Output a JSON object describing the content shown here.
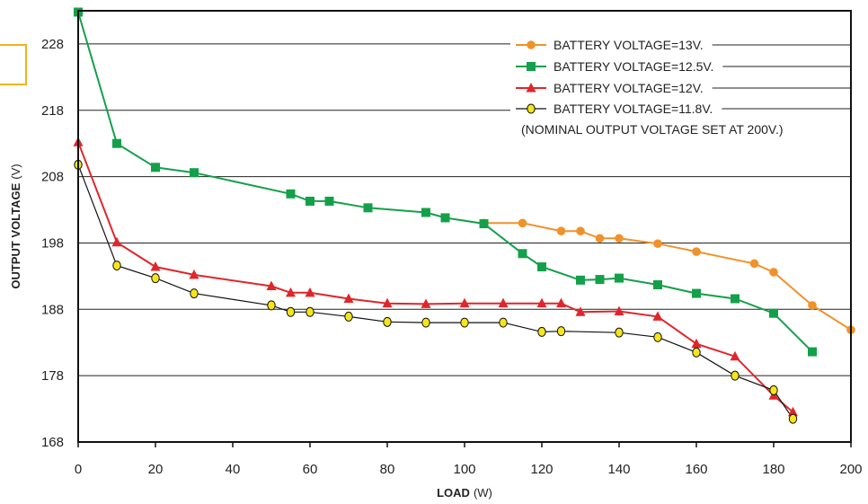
{
  "chart_data": {
    "type": "line",
    "title": "",
    "xlabel_bold": "LOAD",
    "xlabel_unit": "(W)",
    "ylabel_bold": "OUTPUT VOLTAGE",
    "ylabel_unit": "(V)",
    "xlim": [
      0,
      200
    ],
    "ylim": [
      168,
      233
    ],
    "x_ticks": [
      "0",
      "20",
      "40",
      "60",
      "80",
      "100",
      "120",
      "140",
      "160",
      "180",
      "200"
    ],
    "y_ticks": [
      168,
      178,
      188,
      198,
      208,
      218,
      228
    ],
    "y_tick_labels": [
      "168",
      "178",
      "188",
      "198",
      "208",
      "218",
      "228"
    ],
    "grid": "horizontal",
    "legend_position": "top-right",
    "note": "(NOMINAL OUTPUT VOLTAGE SET AT 200V.)",
    "series": [
      {
        "name": "BATTERY VOLTAGE=13V.",
        "color": "#f0922b",
        "marker": "circle",
        "points": [
          [
            105,
            201.0
          ],
          [
            115,
            201.0
          ],
          [
            125,
            199.8
          ],
          [
            130,
            199.8
          ],
          [
            135,
            198.7
          ],
          [
            140,
            198.7
          ],
          [
            150,
            197.9
          ],
          [
            160,
            196.7
          ],
          [
            175,
            194.9
          ],
          [
            180,
            193.6
          ],
          [
            190,
            188.6
          ],
          [
            200,
            184.9
          ]
        ]
      },
      {
        "name": "BATTERY VOLTAGE=12.5V.",
        "color": "#14a04a",
        "marker": "square",
        "points": [
          [
            0,
            232.8
          ],
          [
            10,
            213.0
          ],
          [
            20,
            209.4
          ],
          [
            30,
            208.6
          ],
          [
            55,
            205.4
          ],
          [
            60,
            204.3
          ],
          [
            65,
            204.3
          ],
          [
            75,
            203.3
          ],
          [
            90,
            202.6
          ],
          [
            95,
            201.8
          ],
          [
            105,
            200.9
          ],
          [
            115,
            196.4
          ],
          [
            120,
            194.4
          ],
          [
            130,
            192.4
          ],
          [
            135,
            192.5
          ],
          [
            140,
            192.7
          ],
          [
            150,
            191.7
          ],
          [
            160,
            190.4
          ],
          [
            170,
            189.6
          ],
          [
            180,
            187.4
          ],
          [
            190,
            181.6
          ]
        ]
      },
      {
        "name": "BATTERY VOLTAGE=12V.",
        "color": "#e0262b",
        "marker": "triangle",
        "points": [
          [
            0,
            213.2
          ],
          [
            10,
            198.1
          ],
          [
            20,
            194.4
          ],
          [
            30,
            193.2
          ],
          [
            50,
            191.5
          ],
          [
            55,
            190.5
          ],
          [
            60,
            190.5
          ],
          [
            70,
            189.6
          ],
          [
            80,
            188.9
          ],
          [
            90,
            188.8
          ],
          [
            100,
            188.9
          ],
          [
            110,
            188.9
          ],
          [
            120,
            188.9
          ],
          [
            125,
            188.9
          ],
          [
            130,
            187.6
          ],
          [
            140,
            187.7
          ],
          [
            150,
            186.9
          ],
          [
            160,
            182.8
          ],
          [
            170,
            180.9
          ],
          [
            180,
            175.0
          ],
          [
            185,
            172.5
          ]
        ]
      },
      {
        "name": "BATTERY VOLTAGE=11.8V.",
        "color": "#111111",
        "fill": "#f4e61a",
        "marker": "circle",
        "points": [
          [
            0,
            209.8
          ],
          [
            10,
            194.6
          ],
          [
            20,
            192.7
          ],
          [
            30,
            190.4
          ],
          [
            50,
            188.6
          ],
          [
            55,
            187.6
          ],
          [
            60,
            187.6
          ],
          [
            70,
            186.9
          ],
          [
            80,
            186.1
          ],
          [
            90,
            186.0
          ],
          [
            100,
            186.0
          ],
          [
            110,
            186.0
          ],
          [
            120,
            184.6
          ],
          [
            125,
            184.7
          ],
          [
            140,
            184.5
          ],
          [
            150,
            183.8
          ],
          [
            160,
            181.5
          ],
          [
            170,
            178.0
          ],
          [
            180,
            175.8
          ],
          [
            185,
            171.5
          ]
        ]
      }
    ]
  }
}
